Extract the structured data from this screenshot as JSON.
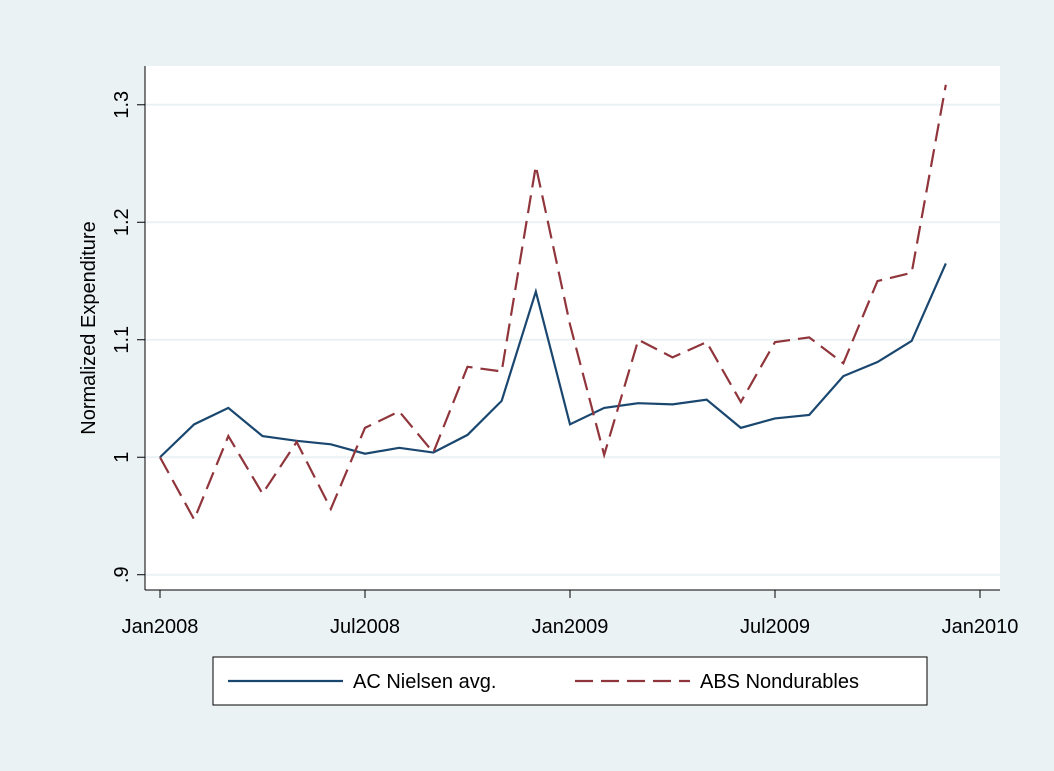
{
  "chart_data": {
    "type": "line",
    "y_label": "Normalized Expenditure",
    "x": [
      "2008-01",
      "2008-02",
      "2008-03",
      "2008-04",
      "2008-05",
      "2008-06",
      "2008-07",
      "2008-08",
      "2008-09",
      "2008-10",
      "2008-11",
      "2008-12",
      "2009-01",
      "2009-02",
      "2009-03",
      "2009-04",
      "2009-05",
      "2009-06",
      "2009-07",
      "2009-08",
      "2009-09",
      "2009-10",
      "2009-11",
      "2009-12"
    ],
    "series": [
      {
        "name": "AC Nielsen avg.",
        "color": "#1a476f",
        "dash": false,
        "values": [
          1.0,
          1.028,
          1.042,
          1.018,
          1.014,
          1.011,
          1.003,
          1.008,
          1.004,
          1.019,
          1.048,
          1.141,
          1.028,
          1.042,
          1.046,
          1.045,
          1.049,
          1.025,
          1.033,
          1.036,
          1.069,
          1.081,
          1.099,
          1.165
        ]
      },
      {
        "name": "ABS Nondurables",
        "color": "#90353b",
        "dash": true,
        "values": [
          1.0,
          0.947,
          1.018,
          0.969,
          1.013,
          0.956,
          1.025,
          1.039,
          1.004,
          1.077,
          1.073,
          1.248,
          1.113,
          1.002,
          1.1,
          1.085,
          1.098,
          1.047,
          1.098,
          1.102,
          1.08,
          1.15,
          1.157,
          1.317
        ]
      }
    ],
    "xlim": [
      "2008-01",
      "2010-01"
    ],
    "xticks": [
      {
        "value": "2008-01",
        "label": "Jan2008"
      },
      {
        "value": "2008-07",
        "label": "Jul2008"
      },
      {
        "value": "2009-01",
        "label": "Jan2009"
      },
      {
        "value": "2009-07",
        "label": "Jul2009"
      },
      {
        "value": "2010-01",
        "label": "Jan2010"
      }
    ],
    "ylim": [
      0.887,
      1.333
    ],
    "yticks": [
      {
        "value": 0.9,
        "label": ".9"
      },
      1,
      1.1,
      1.2,
      1.3
    ],
    "grid": true,
    "legend": "bottom"
  }
}
